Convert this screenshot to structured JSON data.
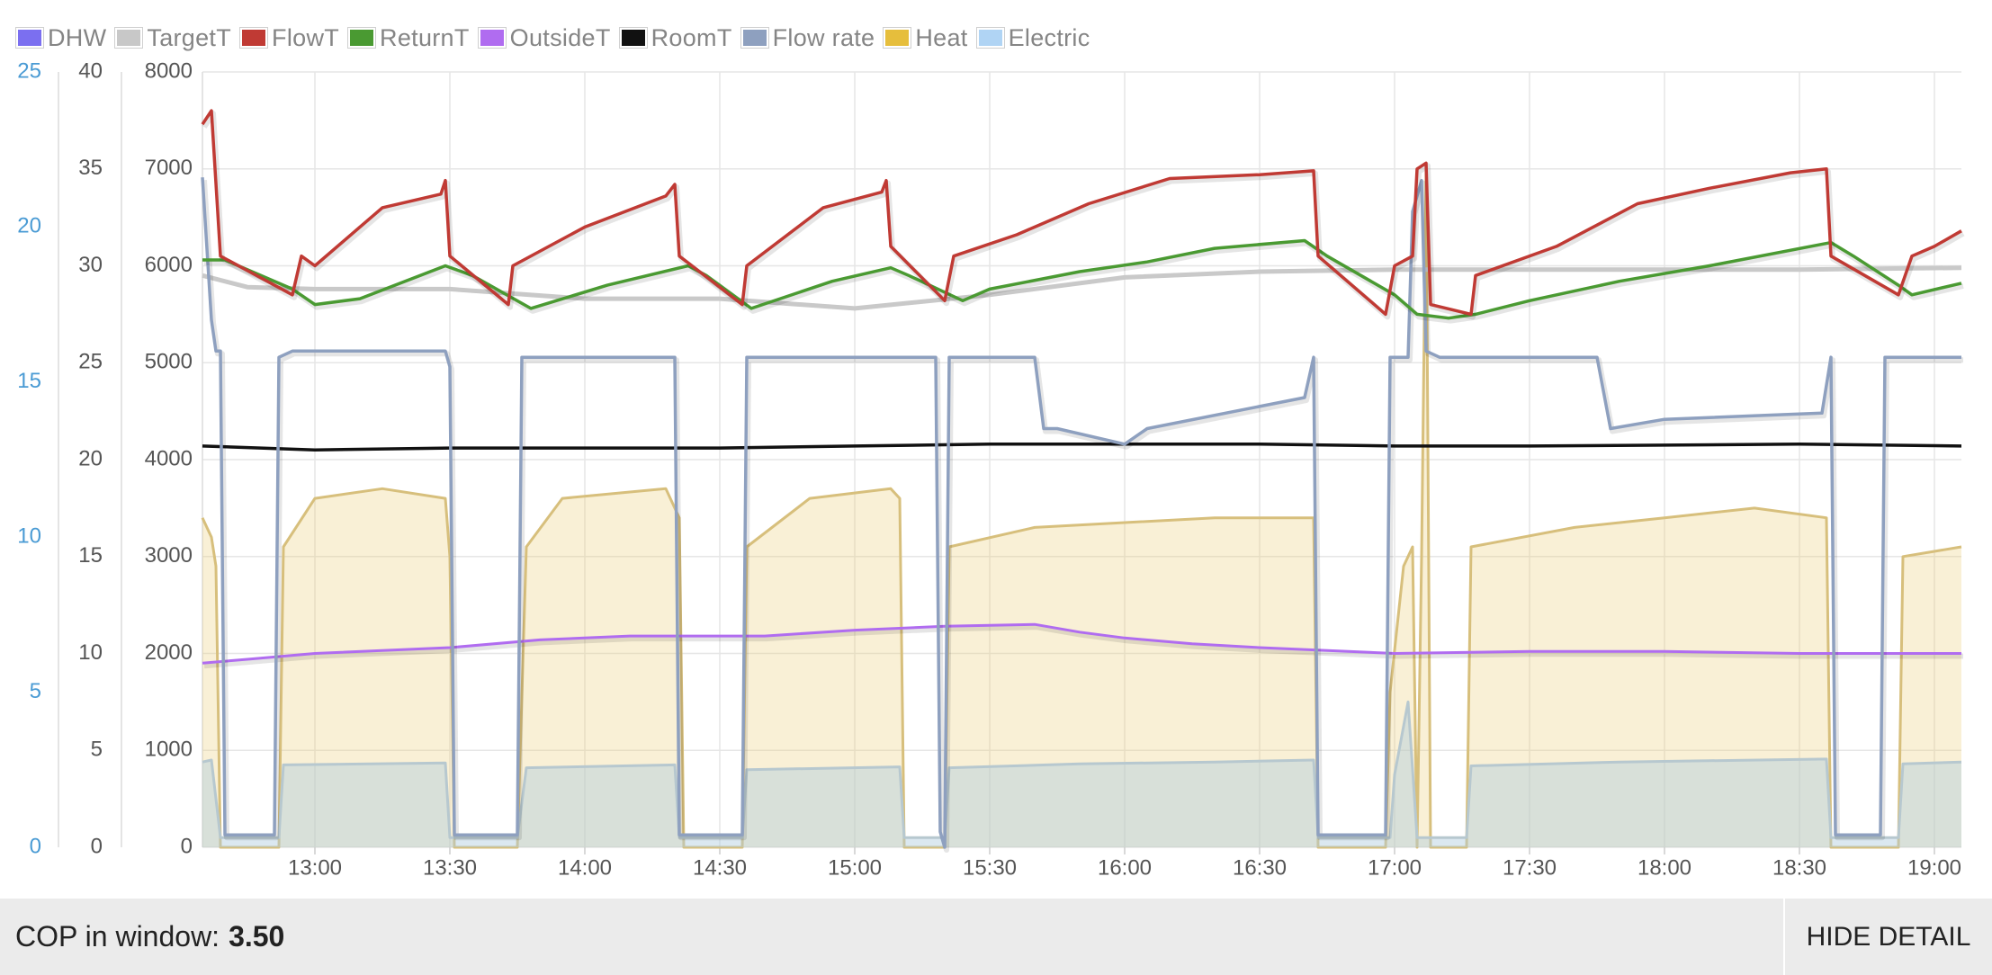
{
  "chart_data": {
    "type": "line",
    "legend": [
      {
        "key": "dhw",
        "label": "DHW",
        "color": "#7b6ff0"
      },
      {
        "key": "target",
        "label": "TargetT",
        "color": "#c8c8c8"
      },
      {
        "key": "flow",
        "label": "FlowT",
        "color": "#c03a34"
      },
      {
        "key": "return",
        "label": "ReturnT",
        "color": "#4a9a32"
      },
      {
        "key": "outside",
        "label": "OutsideT",
        "color": "#b06cf0"
      },
      {
        "key": "room",
        "label": "RoomT",
        "color": "#111111"
      },
      {
        "key": "flowrate",
        "label": "Flow rate",
        "color": "#8ea0bf"
      },
      {
        "key": "heat",
        "label": "Heat",
        "color": "#e6be3c"
      },
      {
        "key": "elec",
        "label": "Electric",
        "color": "#b0d4f4"
      }
    ],
    "x_ticks": [
      "13:00",
      "13:30",
      "14:00",
      "14:30",
      "15:00",
      "15:30",
      "16:00",
      "16:30",
      "17:00",
      "17:30",
      "18:00",
      "18:30",
      "19:00"
    ],
    "x_range": [
      "12:35",
      "19:06"
    ],
    "y_left_flowrate": {
      "ticks": [
        "0",
        "5",
        "10",
        "15",
        "20",
        "25"
      ],
      "range": [
        0,
        25
      ],
      "color": "#4a9bd4"
    },
    "y_left_temp": {
      "ticks": [
        "0",
        "5",
        "10",
        "15",
        "20",
        "25",
        "30",
        "35",
        "40"
      ],
      "range": [
        0,
        40
      ]
    },
    "y_left_power": {
      "ticks": [
        "0",
        "1000",
        "2000",
        "3000",
        "4000",
        "5000",
        "6000",
        "7000",
        "8000"
      ],
      "range": [
        0,
        8000
      ]
    },
    "grid": true,
    "series": {
      "flow_temp": [
        [
          "12:35",
          37.3
        ],
        [
          "12:37",
          38
        ],
        [
          "12:39",
          30.5
        ],
        [
          "12:55",
          28.5
        ],
        [
          "12:57",
          30.5
        ],
        [
          "13:00",
          30
        ],
        [
          "13:15",
          33
        ],
        [
          "13:28",
          33.7
        ],
        [
          "13:29",
          34.4
        ],
        [
          "13:30",
          30.5
        ],
        [
          "13:43",
          28
        ],
        [
          "13:44",
          30
        ],
        [
          "14:00",
          32
        ],
        [
          "14:18",
          33.6
        ],
        [
          "14:20",
          34.2
        ],
        [
          "14:21",
          30.5
        ],
        [
          "14:35",
          28
        ],
        [
          "14:36",
          30
        ],
        [
          "14:53",
          33
        ],
        [
          "15:06",
          33.8
        ],
        [
          "15:07",
          34.4
        ],
        [
          "15:08",
          31
        ],
        [
          "15:20",
          28.2
        ],
        [
          "15:22",
          30.5
        ],
        [
          "15:36",
          31.6
        ],
        [
          "15:52",
          33.2
        ],
        [
          "16:10",
          34.5
        ],
        [
          "16:30",
          34.7
        ],
        [
          "16:42",
          34.9
        ],
        [
          "16:43",
          30.5
        ],
        [
          "16:58",
          27.5
        ],
        [
          "17:00",
          30
        ],
        [
          "17:04",
          30.5
        ],
        [
          "17:05",
          35
        ],
        [
          "17:07",
          35.3
        ],
        [
          "17:08",
          28
        ],
        [
          "17:17",
          27.5
        ],
        [
          "17:18",
          29.5
        ],
        [
          "17:36",
          31
        ],
        [
          "17:54",
          33.2
        ],
        [
          "18:10",
          34
        ],
        [
          "18:28",
          34.8
        ],
        [
          "18:36",
          35
        ],
        [
          "18:37",
          30.5
        ],
        [
          "18:52",
          28.5
        ],
        [
          "18:55",
          30.5
        ],
        [
          "19:00",
          31
        ],
        [
          "19:06",
          31.8
        ]
      ],
      "return_temp": [
        [
          "12:35",
          30.3
        ],
        [
          "12:40",
          30.3
        ],
        [
          "12:55",
          28.8
        ],
        [
          "13:00",
          28
        ],
        [
          "13:10",
          28.3
        ],
        [
          "13:29",
          30
        ],
        [
          "13:35",
          29.5
        ],
        [
          "13:48",
          27.8
        ],
        [
          "14:05",
          29
        ],
        [
          "14:23",
          30
        ],
        [
          "14:27",
          29.5
        ],
        [
          "14:37",
          27.8
        ],
        [
          "14:55",
          29.2
        ],
        [
          "15:08",
          29.9
        ],
        [
          "15:12",
          29.5
        ],
        [
          "15:24",
          28.2
        ],
        [
          "15:30",
          28.8
        ],
        [
          "15:50",
          29.7
        ],
        [
          "16:05",
          30.2
        ],
        [
          "16:20",
          30.9
        ],
        [
          "16:40",
          31.3
        ],
        [
          "16:45",
          30.5
        ],
        [
          "17:00",
          28.5
        ],
        [
          "17:05",
          27.5
        ],
        [
          "17:12",
          27.3
        ],
        [
          "17:18",
          27.5
        ],
        [
          "17:30",
          28.2
        ],
        [
          "17:50",
          29.2
        ],
        [
          "18:10",
          30
        ],
        [
          "18:37",
          31.2
        ],
        [
          "18:42",
          30.5
        ],
        [
          "18:52",
          29
        ],
        [
          "18:55",
          28.5
        ],
        [
          "19:06",
          29.1
        ]
      ],
      "target_temp": [
        [
          "12:35",
          29.5
        ],
        [
          "12:45",
          28.9
        ],
        [
          "13:00",
          28.8
        ],
        [
          "13:30",
          28.8
        ],
        [
          "14:00",
          28.3
        ],
        [
          "14:30",
          28.3
        ],
        [
          "15:00",
          27.8
        ],
        [
          "15:30",
          28.5
        ],
        [
          "16:00",
          29.4
        ],
        [
          "16:30",
          29.7
        ],
        [
          "17:00",
          29.8
        ],
        [
          "17:30",
          29.8
        ],
        [
          "18:00",
          29.8
        ],
        [
          "18:30",
          29.8
        ],
        [
          "19:06",
          29.9
        ]
      ],
      "outside_temp": [
        [
          "12:35",
          9.5
        ],
        [
          "12:45",
          9.7
        ],
        [
          "13:00",
          10
        ],
        [
          "13:30",
          10.3
        ],
        [
          "13:50",
          10.7
        ],
        [
          "14:10",
          10.9
        ],
        [
          "14:40",
          10.9
        ],
        [
          "15:00",
          11.2
        ],
        [
          "15:20",
          11.4
        ],
        [
          "15:40",
          11.5
        ],
        [
          "15:50",
          11.1
        ],
        [
          "16:00",
          10.8
        ],
        [
          "16:15",
          10.5
        ],
        [
          "16:30",
          10.3
        ],
        [
          "17:00",
          10
        ],
        [
          "17:30",
          10.1
        ],
        [
          "18:00",
          10.1
        ],
        [
          "18:30",
          10
        ],
        [
          "19:06",
          10
        ]
      ],
      "room_temp": [
        [
          "12:35",
          20.7
        ],
        [
          "13:00",
          20.5
        ],
        [
          "13:30",
          20.6
        ],
        [
          "14:30",
          20.6
        ],
        [
          "15:00",
          20.7
        ],
        [
          "15:30",
          20.8
        ],
        [
          "16:30",
          20.8
        ],
        [
          "17:00",
          20.7
        ],
        [
          "17:30",
          20.7
        ],
        [
          "18:30",
          20.8
        ],
        [
          "19:06",
          20.7
        ]
      ],
      "flow_rate": [
        [
          "12:35",
          21.6
        ],
        [
          "12:37",
          17
        ],
        [
          "12:38",
          16
        ],
        [
          "12:39",
          16
        ],
        [
          "12:40",
          0.4
        ],
        [
          "12:50",
          0.4
        ],
        [
          "12:51",
          0.4
        ],
        [
          "12:52",
          15.8
        ],
        [
          "12:55",
          16
        ],
        [
          "13:29",
          16
        ],
        [
          "13:30",
          15.5
        ],
        [
          "13:31",
          0.4
        ],
        [
          "13:45",
          0.4
        ],
        [
          "13:46",
          15.8
        ],
        [
          "14:20",
          15.8
        ],
        [
          "14:21",
          0.4
        ],
        [
          "14:35",
          0.4
        ],
        [
          "14:36",
          15.8
        ],
        [
          "15:05",
          15.8
        ],
        [
          "15:18",
          15.8
        ],
        [
          "15:19",
          0.5
        ],
        [
          "15:20",
          0
        ],
        [
          "15:21",
          15.8
        ],
        [
          "15:40",
          15.8
        ],
        [
          "15:42",
          13.5
        ],
        [
          "15:45",
          13.5
        ],
        [
          "16:00",
          13
        ],
        [
          "16:05",
          13.5
        ],
        [
          "16:40",
          14.5
        ],
        [
          "16:42",
          15.8
        ],
        [
          "16:43",
          0.4
        ],
        [
          "16:58",
          0.4
        ],
        [
          "16:59",
          15.8
        ],
        [
          "17:03",
          15.8
        ],
        [
          "17:04",
          20.5
        ],
        [
          "17:06",
          21.5
        ],
        [
          "17:07",
          16
        ],
        [
          "17:10",
          15.8
        ],
        [
          "17:45",
          15.8
        ],
        [
          "17:48",
          13.5
        ],
        [
          "18:00",
          13.8
        ],
        [
          "18:35",
          14
        ],
        [
          "18:37",
          15.8
        ],
        [
          "18:38",
          0.4
        ],
        [
          "18:48",
          0.4
        ],
        [
          "18:49",
          15.8
        ],
        [
          "18:52",
          15.8
        ],
        [
          "19:06",
          15.8
        ]
      ],
      "heat_power": [
        [
          "12:35",
          3400
        ],
        [
          "12:37",
          3200
        ],
        [
          "12:38",
          2900
        ],
        [
          "12:39",
          0
        ],
        [
          "12:52",
          0
        ],
        [
          "12:53",
          3100
        ],
        [
          "13:00",
          3600
        ],
        [
          "13:15",
          3700
        ],
        [
          "13:29",
          3600
        ],
        [
          "13:30",
          3000
        ],
        [
          "13:31",
          0
        ],
        [
          "13:45",
          0
        ],
        [
          "13:47",
          3100
        ],
        [
          "13:55",
          3600
        ],
        [
          "14:18",
          3700
        ],
        [
          "14:21",
          3400
        ],
        [
          "14:22",
          0
        ],
        [
          "14:35",
          0
        ],
        [
          "14:36",
          3100
        ],
        [
          "14:50",
          3600
        ],
        [
          "15:08",
          3700
        ],
        [
          "15:10",
          3600
        ],
        [
          "15:11",
          0
        ],
        [
          "15:20",
          0
        ],
        [
          "15:21",
          3100
        ],
        [
          "15:40",
          3300
        ],
        [
          "16:00",
          3350
        ],
        [
          "16:20",
          3400
        ],
        [
          "16:42",
          3400
        ],
        [
          "16:43",
          0
        ],
        [
          "16:58",
          0
        ],
        [
          "16:59",
          1600
        ],
        [
          "17:02",
          2900
        ],
        [
          "17:04",
          3100
        ],
        [
          "17:05",
          0
        ],
        [
          "17:06",
          3000
        ],
        [
          "17:07",
          6980
        ],
        [
          "17:08",
          0
        ],
        [
          "17:16",
          0
        ],
        [
          "17:17",
          3100
        ],
        [
          "17:40",
          3300
        ],
        [
          "18:00",
          3400
        ],
        [
          "18:20",
          3500
        ],
        [
          "18:36",
          3400
        ],
        [
          "18:37",
          0
        ],
        [
          "18:52",
          0
        ],
        [
          "18:53",
          3000
        ],
        [
          "19:06",
          3100
        ]
      ],
      "electric_power": [
        [
          "12:35",
          880
        ],
        [
          "12:37",
          900
        ],
        [
          "12:39",
          100
        ],
        [
          "12:52",
          100
        ],
        [
          "12:53",
          850
        ],
        [
          "13:29",
          870
        ],
        [
          "13:30",
          100
        ],
        [
          "13:45",
          100
        ],
        [
          "13:47",
          820
        ],
        [
          "14:20",
          850
        ],
        [
          "14:21",
          100
        ],
        [
          "14:35",
          100
        ],
        [
          "14:36",
          800
        ],
        [
          "15:10",
          830
        ],
        [
          "15:11",
          100
        ],
        [
          "15:20",
          100
        ],
        [
          "15:21",
          820
        ],
        [
          "15:50",
          860
        ],
        [
          "16:20",
          880
        ],
        [
          "16:42",
          900
        ],
        [
          "16:43",
          100
        ],
        [
          "16:59",
          100
        ],
        [
          "17:00",
          750
        ],
        [
          "17:03",
          1500
        ],
        [
          "17:04",
          800
        ],
        [
          "17:05",
          100
        ],
        [
          "17:07",
          100
        ],
        [
          "17:08",
          100
        ],
        [
          "17:16",
          100
        ],
        [
          "17:17",
          840
        ],
        [
          "17:50",
          880
        ],
        [
          "18:36",
          910
        ],
        [
          "18:37",
          100
        ],
        [
          "18:52",
          100
        ],
        [
          "18:53",
          860
        ],
        [
          "19:06",
          880
        ]
      ]
    }
  },
  "footer": {
    "cop_label": "COP in window:",
    "cop_value": "3.50",
    "hide_label": "HIDE DETAIL"
  }
}
